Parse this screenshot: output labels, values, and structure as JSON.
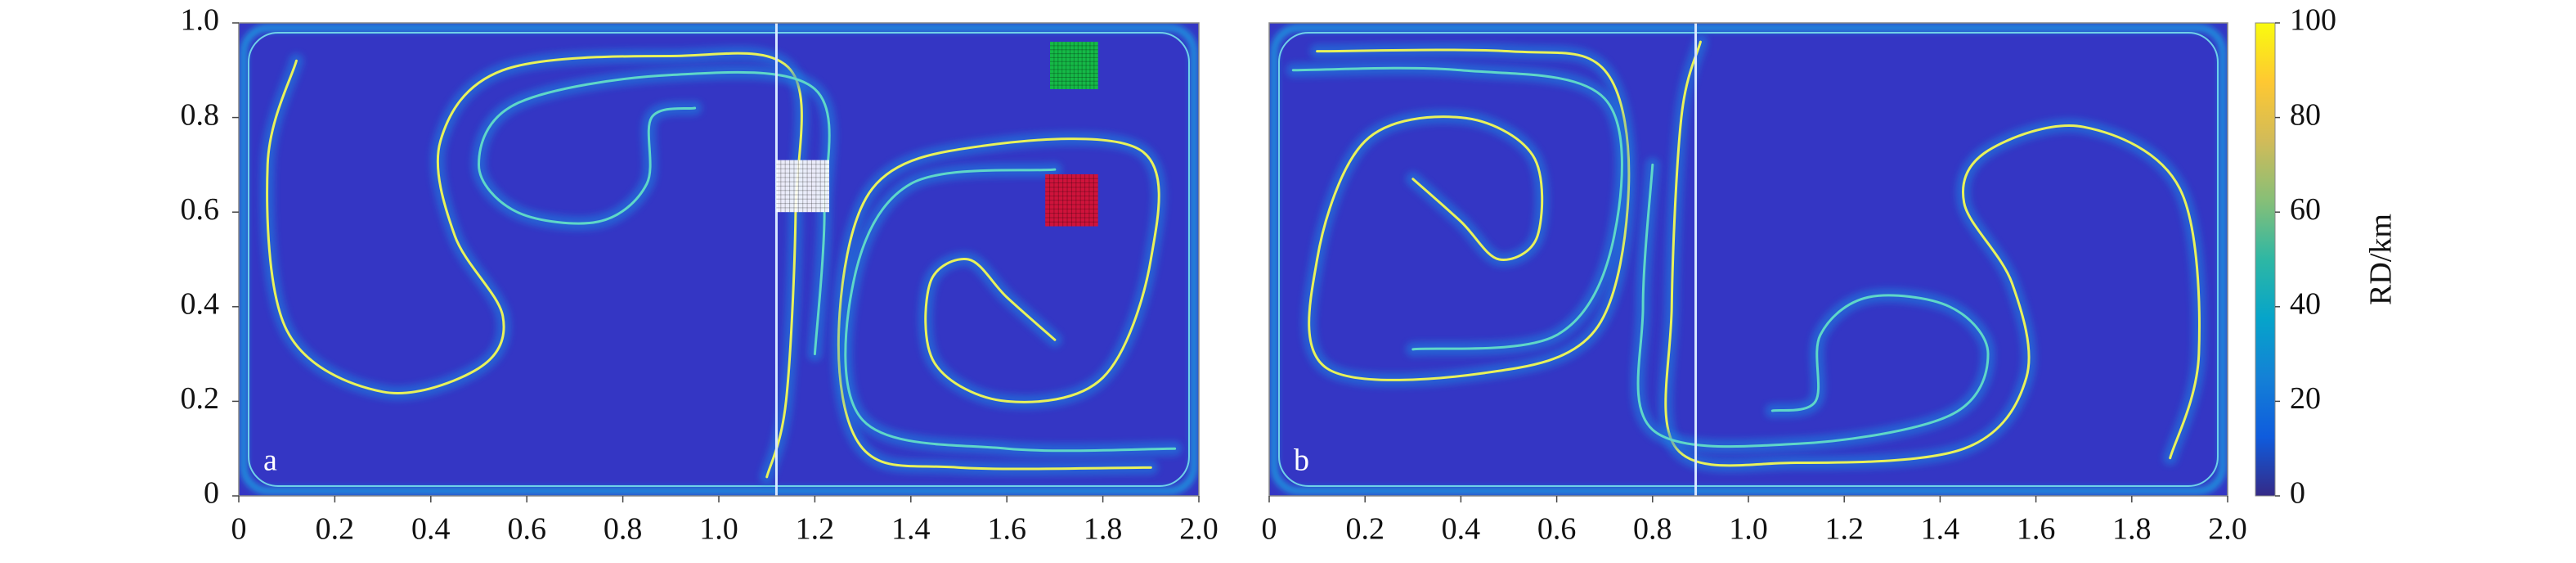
{
  "chart_data": [
    {
      "type": "heatmap",
      "panel_label": "a",
      "xlim": [
        0,
        2
      ],
      "ylim": [
        0,
        1
      ],
      "xticks": [
        0,
        0.2,
        0.4,
        0.6,
        0.8,
        {
          "value": 1,
          "label": "1.0"
        },
        1.2,
        1.4,
        1.6,
        1.8,
        {
          "value": 2,
          "label": "2.0"
        }
      ],
      "yticks": [
        0,
        0.2,
        0.4,
        0.6,
        0.8,
        {
          "value": 1,
          "label": "1.0"
        }
      ],
      "seed_regions": [
        {
          "color": "#ffffff",
          "xlim": [
            1.12,
            1.23
          ],
          "ylim": [
            0.6,
            0.71
          ]
        },
        {
          "color": "#e0102c",
          "xlim": [
            1.68,
            1.79
          ],
          "ylim": [
            0.57,
            0.68
          ]
        },
        {
          "color": "#12c83a",
          "xlim": [
            1.69,
            1.79
          ],
          "ylim": [
            0.86,
            0.96
          ]
        }
      ]
    },
    {
      "type": "heatmap",
      "panel_label": "b",
      "xlim": [
        0,
        2
      ],
      "ylim": [
        0,
        1
      ],
      "xticks": [
        0,
        0.2,
        0.4,
        0.6,
        0.8,
        {
          "value": 1,
          "label": "1.0"
        },
        1.2,
        1.4,
        1.6,
        1.8,
        {
          "value": 2,
          "label": "2.0"
        }
      ],
      "yticks": [],
      "seed_regions": []
    }
  ],
  "colorbar": {
    "label": "RD/km",
    "lim": [
      0,
      100
    ],
    "ticks": [
      0,
      20,
      40,
      60,
      80,
      100
    ],
    "colors": [
      "#352a87",
      "#0f5cdd",
      "#1481d6",
      "#06a4ca",
      "#2eb7a4",
      "#87bf77",
      "#d1bb59",
      "#fec832",
      "#f9fb0e"
    ]
  }
}
